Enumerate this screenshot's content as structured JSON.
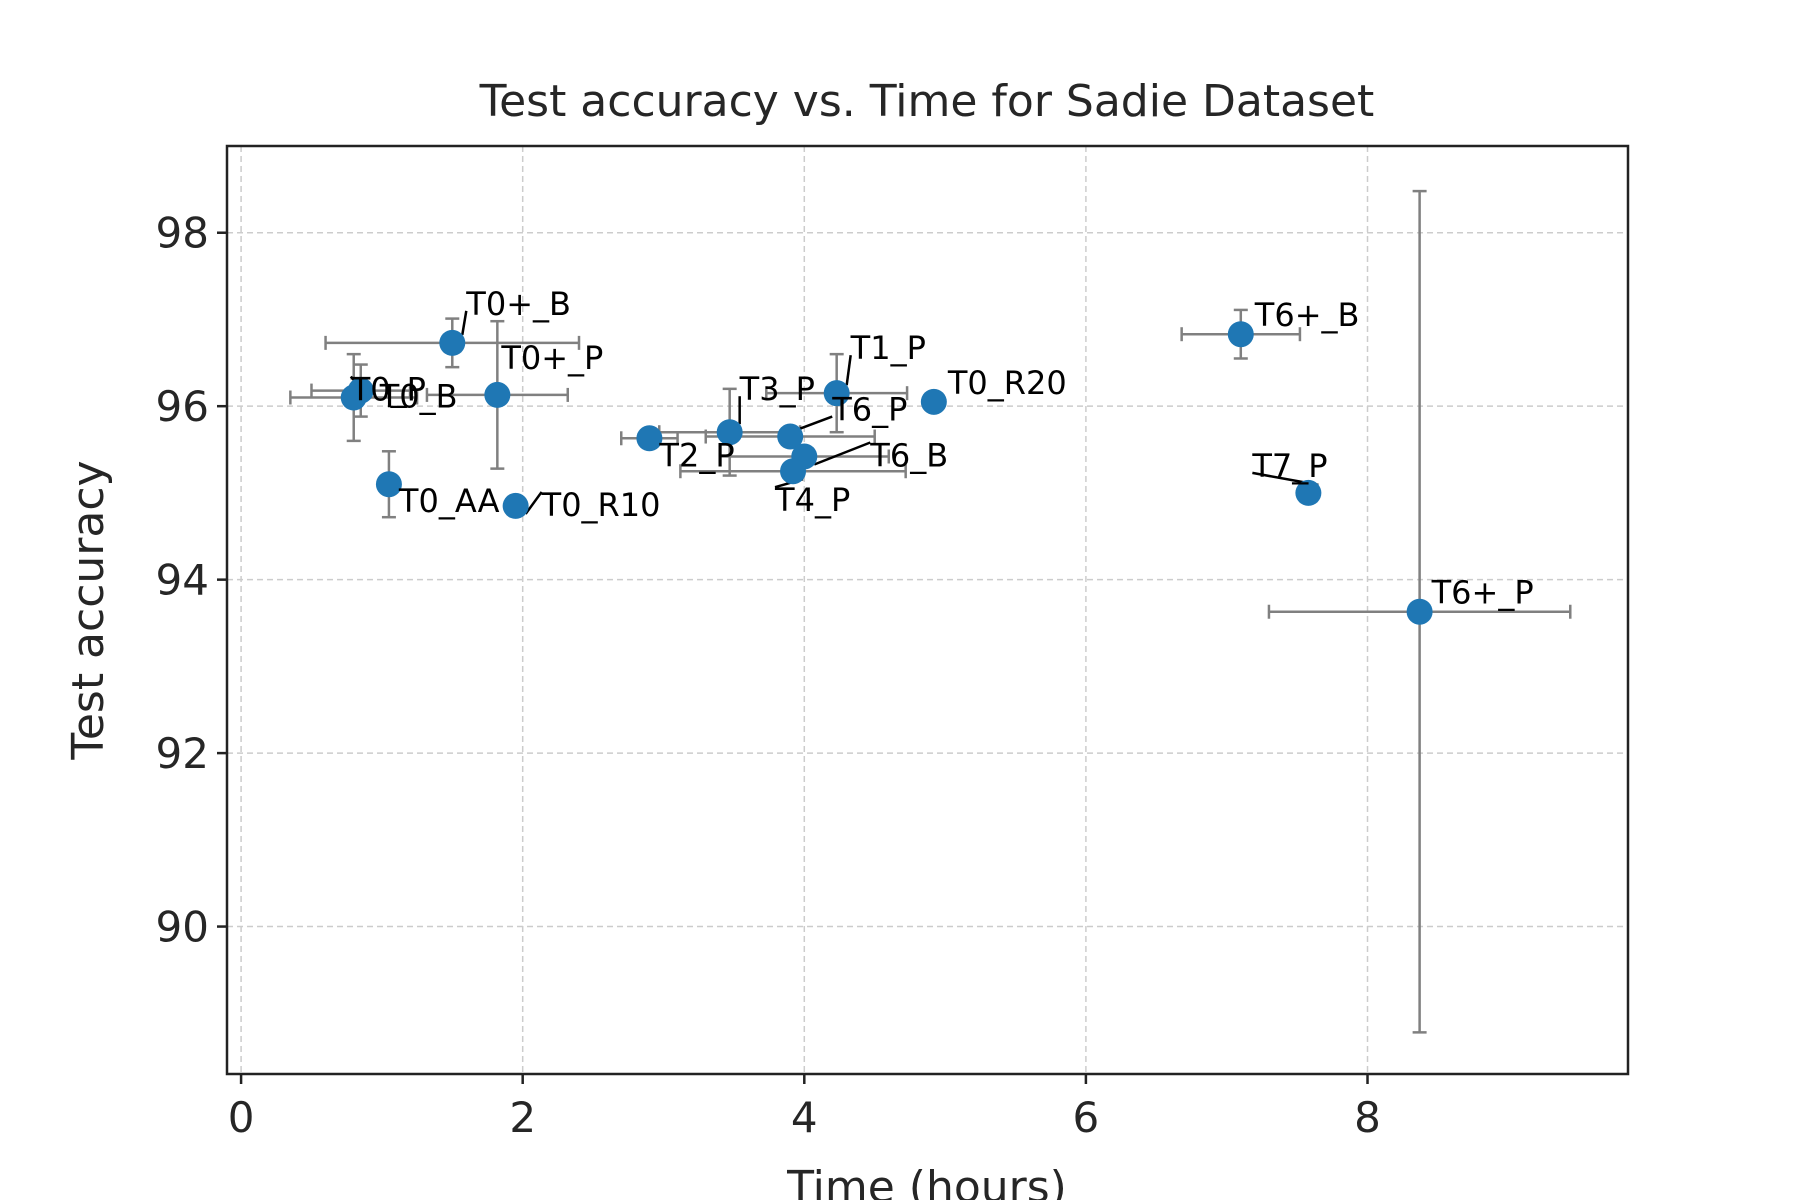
{
  "chart_data": {
    "type": "scatter",
    "title": "Test accuracy vs. Time for Sadie Dataset",
    "xlabel": "Time (hours)",
    "ylabel": "Test accuracy",
    "xlim": [
      -0.1,
      9.85
    ],
    "ylim": [
      88.3,
      99.0
    ],
    "xticks": [
      0,
      2,
      4,
      6,
      8
    ],
    "yticks": [
      90,
      92,
      94,
      96,
      98
    ],
    "grid": true,
    "colors": {
      "marker": "#1f77b4",
      "errorbar": "#808080",
      "leader": "#000000"
    },
    "points": [
      {
        "label": "T0+_B",
        "x": 1.5,
        "y": 96.73,
        "xerr": 0.9,
        "yerr": 0.28
      },
      {
        "label": "T0_P",
        "x": 0.85,
        "y": 96.18,
        "xerr": 0.35,
        "yerr": 0.3
      },
      {
        "label": "T0_B",
        "x": 0.8,
        "y": 96.1,
        "xerr": 0.45,
        "yerr": 0.5
      },
      {
        "label": "T0+_P",
        "x": 1.82,
        "y": 96.13,
        "xerr": 0.5,
        "yerr": 0.85
      },
      {
        "label": "T0_AA",
        "x": 1.05,
        "y": 95.1,
        "xerr": 0.0,
        "yerr": 0.38
      },
      {
        "label": "T0_R10",
        "x": 1.95,
        "y": 94.85,
        "xerr": 0.0,
        "yerr": 0.0
      },
      {
        "label": "T2_P",
        "x": 2.9,
        "y": 95.63,
        "xerr": 0.2,
        "yerr": 0.0
      },
      {
        "label": "T3_P",
        "x": 3.47,
        "y": 95.7,
        "xerr": 0.5,
        "yerr": 0.5
      },
      {
        "label": "T1_P",
        "x": 4.23,
        "y": 96.15,
        "xerr": 0.5,
        "yerr": 0.45
      },
      {
        "label": "T6_P",
        "x": 3.9,
        "y": 95.65,
        "xerr": 0.6,
        "yerr": 0.0
      },
      {
        "label": "T6_B",
        "x": 4.0,
        "y": 95.42,
        "xerr": 0.6,
        "yerr": 0.0
      },
      {
        "label": "T4_P",
        "x": 3.92,
        "y": 95.25,
        "xerr": 0.8,
        "yerr": 0.0
      },
      {
        "label": "T0_R20",
        "x": 4.92,
        "y": 96.05,
        "xerr": 0.0,
        "yerr": 0.0
      },
      {
        "label": "T6+_B",
        "x": 7.1,
        "y": 96.83,
        "xerr": 0.42,
        "yerr": 0.28
      },
      {
        "label": "T7_P",
        "x": 7.58,
        "y": 95.0,
        "xerr": 0.0,
        "yerr": 0.0
      },
      {
        "label": "T6+_P",
        "x": 8.37,
        "y": 93.63,
        "xerr": 1.07,
        "yerr": 4.85
      }
    ]
  }
}
